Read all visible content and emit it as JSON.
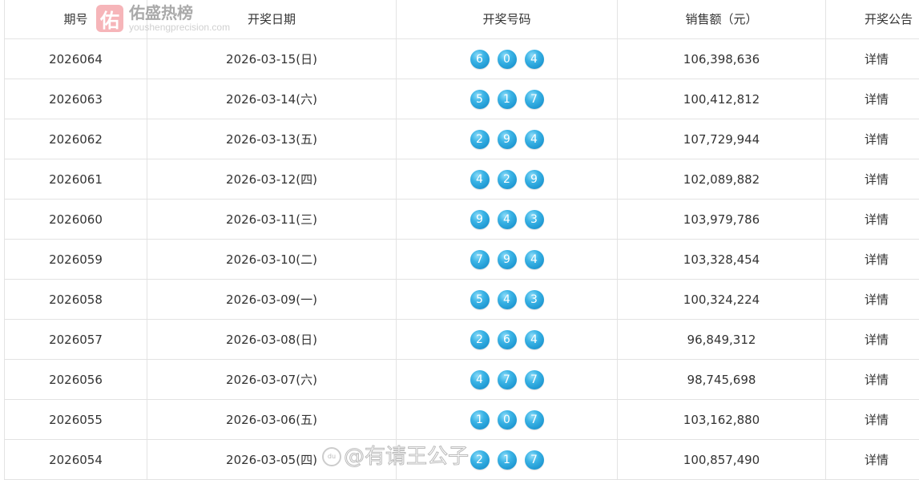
{
  "headers": [
    "期号",
    "开奖日期",
    "开奖号码",
    "销售额（元）",
    "开奖公告"
  ],
  "rows": [
    {
      "issue": "2026064",
      "date": "2026-03-15(日)",
      "numbers": [
        "6",
        "0",
        "4"
      ],
      "sales": "106,398,636",
      "link": "详情"
    },
    {
      "issue": "2026063",
      "date": "2026-03-14(六)",
      "numbers": [
        "5",
        "1",
        "7"
      ],
      "sales": "100,412,812",
      "link": "详情"
    },
    {
      "issue": "2026062",
      "date": "2026-03-13(五)",
      "numbers": [
        "2",
        "9",
        "4"
      ],
      "sales": "107,729,944",
      "link": "详情"
    },
    {
      "issue": "2026061",
      "date": "2026-03-12(四)",
      "numbers": [
        "4",
        "2",
        "9"
      ],
      "sales": "102,089,882",
      "link": "详情"
    },
    {
      "issue": "2026060",
      "date": "2026-03-11(三)",
      "numbers": [
        "9",
        "4",
        "3"
      ],
      "sales": "103,979,786",
      "link": "详情"
    },
    {
      "issue": "2026059",
      "date": "2026-03-10(二)",
      "numbers": [
        "7",
        "9",
        "4"
      ],
      "sales": "103,328,454",
      "link": "详情"
    },
    {
      "issue": "2026058",
      "date": "2026-03-09(一)",
      "numbers": [
        "5",
        "4",
        "3"
      ],
      "sales": "100,324,224",
      "link": "详情"
    },
    {
      "issue": "2026057",
      "date": "2026-03-08(日)",
      "numbers": [
        "2",
        "6",
        "4"
      ],
      "sales": "96,849,312",
      "link": "详情"
    },
    {
      "issue": "2026056",
      "date": "2026-03-07(六)",
      "numbers": [
        "4",
        "7",
        "7"
      ],
      "sales": "98,745,698",
      "link": "详情"
    },
    {
      "issue": "2026055",
      "date": "2026-03-06(五)",
      "numbers": [
        "1",
        "0",
        "7"
      ],
      "sales": "103,162,880",
      "link": "详情"
    },
    {
      "issue": "2026054",
      "date": "2026-03-05(四)",
      "numbers": [
        "2",
        "1",
        "7"
      ],
      "sales": "100,857,490",
      "link": "详情"
    }
  ],
  "watermark": {
    "logo": "佑",
    "name": "佑盛热榜",
    "url": "youshengprecision.com"
  },
  "watermark2": {
    "logo": "du",
    "text": "@有请王公子"
  },
  "colors": {
    "ball": "#2aa6dd",
    "border": "#e3e3e3"
  }
}
